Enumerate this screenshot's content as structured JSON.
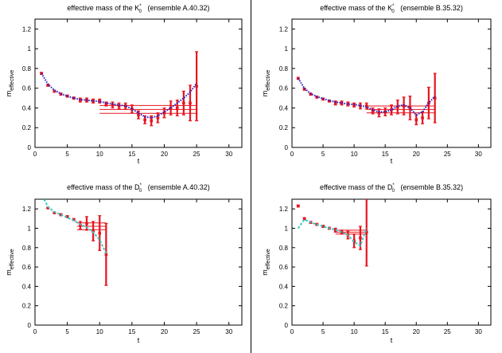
{
  "chart_data": [
    {
      "type": "scatter",
      "title_main": "effective mass of the K",
      "title_sup": "*",
      "title_sub": "0",
      "title_tail": "   (ensemble A.40.32)",
      "xlabel": "t",
      "ylabel_main": "m",
      "ylabel_sub": "effective",
      "xlim": [
        0,
        32
      ],
      "ylim": [
        0,
        1.3
      ],
      "xticks": [
        "0",
        "5",
        "10",
        "15",
        "20",
        "25",
        "30"
      ],
      "yticks": [
        "0",
        "0.2",
        "0.4",
        "0.6",
        "0.8",
        "1",
        "1.2"
      ],
      "colors": {
        "data": "#e8141e",
        "fit": "#2020c8"
      },
      "fit_style": "dotted",
      "points": [
        {
          "x": 1,
          "y": 0.75,
          "err": 0.01
        },
        {
          "x": 2,
          "y": 0.63,
          "err": 0.01
        },
        {
          "x": 3,
          "y": 0.57,
          "err": 0.01
        },
        {
          "x": 4,
          "y": 0.54,
          "err": 0.01
        },
        {
          "x": 5,
          "y": 0.52,
          "err": 0.01
        },
        {
          "x": 6,
          "y": 0.5,
          "err": 0.01
        },
        {
          "x": 7,
          "y": 0.48,
          "err": 0.02
        },
        {
          "x": 8,
          "y": 0.48,
          "err": 0.02
        },
        {
          "x": 9,
          "y": 0.47,
          "err": 0.02
        },
        {
          "x": 10,
          "y": 0.47,
          "err": 0.02
        },
        {
          "x": 11,
          "y": 0.44,
          "err": 0.02
        },
        {
          "x": 12,
          "y": 0.43,
          "err": 0.03
        },
        {
          "x": 13,
          "y": 0.42,
          "err": 0.03
        },
        {
          "x": 14,
          "y": 0.42,
          "err": 0.03
        },
        {
          "x": 15,
          "y": 0.39,
          "err": 0.04
        },
        {
          "x": 16,
          "y": 0.33,
          "err": 0.04
        },
        {
          "x": 17,
          "y": 0.28,
          "err": 0.04
        },
        {
          "x": 18,
          "y": 0.27,
          "err": 0.05
        },
        {
          "x": 19,
          "y": 0.3,
          "err": 0.05
        },
        {
          "x": 20,
          "y": 0.35,
          "err": 0.05
        },
        {
          "x": 21,
          "y": 0.4,
          "err": 0.07
        },
        {
          "x": 22,
          "y": 0.4,
          "err": 0.08
        },
        {
          "x": 23,
          "y": 0.45,
          "err": 0.12
        },
        {
          "x": 24,
          "y": 0.45,
          "err": 0.18
        },
        {
          "x": 25,
          "y": 0.62,
          "err": 0.35
        }
      ],
      "fit_curve": [
        [
          1,
          0.75
        ],
        [
          2,
          0.64
        ],
        [
          3,
          0.58
        ],
        [
          4,
          0.545
        ],
        [
          5,
          0.52
        ],
        [
          6,
          0.5
        ],
        [
          7,
          0.485
        ],
        [
          8,
          0.478
        ],
        [
          9,
          0.472
        ],
        [
          10,
          0.465
        ],
        [
          11,
          0.45
        ],
        [
          12,
          0.44
        ],
        [
          13,
          0.43
        ],
        [
          14,
          0.42
        ],
        [
          15,
          0.39
        ],
        [
          16,
          0.35
        ],
        [
          17,
          0.31
        ],
        [
          18,
          0.3
        ],
        [
          19,
          0.32
        ],
        [
          20,
          0.36
        ],
        [
          21,
          0.4
        ],
        [
          22,
          0.45
        ],
        [
          23,
          0.5
        ],
        [
          24,
          0.56
        ],
        [
          25,
          0.65
        ]
      ],
      "plateau": {
        "x_start": 10,
        "x_end": 25,
        "value": 0.385,
        "err": 0.04
      }
    },
    {
      "type": "scatter",
      "title_main": "effective mass of the K",
      "title_sup": "*",
      "title_sub": "0",
      "title_tail": "   (ensemble B.35.32)",
      "xlabel": "t",
      "ylabel_main": "m",
      "ylabel_sub": "effective",
      "xlim": [
        0,
        32
      ],
      "ylim": [
        0,
        1.3
      ],
      "xticks": [
        "0",
        "5",
        "10",
        "15",
        "20",
        "25",
        "30"
      ],
      "yticks": [
        "0",
        "0.2",
        "0.4",
        "0.6",
        "0.8",
        "1",
        "1.2"
      ],
      "colors": {
        "data": "#e8141e",
        "fit": "#2020c8"
      },
      "fit_style": "dotted",
      "points": [
        {
          "x": 1,
          "y": 0.7,
          "err": 0.01
        },
        {
          "x": 2,
          "y": 0.59,
          "err": 0.01
        },
        {
          "x": 3,
          "y": 0.54,
          "err": 0.01
        },
        {
          "x": 4,
          "y": 0.51,
          "err": 0.01
        },
        {
          "x": 5,
          "y": 0.49,
          "err": 0.01
        },
        {
          "x": 6,
          "y": 0.47,
          "err": 0.01
        },
        {
          "x": 7,
          "y": 0.45,
          "err": 0.02
        },
        {
          "x": 8,
          "y": 0.45,
          "err": 0.02
        },
        {
          "x": 9,
          "y": 0.44,
          "err": 0.02
        },
        {
          "x": 10,
          "y": 0.43,
          "err": 0.02
        },
        {
          "x": 11,
          "y": 0.42,
          "err": 0.03
        },
        {
          "x": 12,
          "y": 0.42,
          "err": 0.03
        },
        {
          "x": 13,
          "y": 0.37,
          "err": 0.03
        },
        {
          "x": 14,
          "y": 0.35,
          "err": 0.04
        },
        {
          "x": 15,
          "y": 0.36,
          "err": 0.04
        },
        {
          "x": 16,
          "y": 0.38,
          "err": 0.05
        },
        {
          "x": 17,
          "y": 0.41,
          "err": 0.07
        },
        {
          "x": 18,
          "y": 0.42,
          "err": 0.09
        },
        {
          "x": 19,
          "y": 0.4,
          "err": 0.12
        },
        {
          "x": 20,
          "y": 0.28,
          "err": 0.05
        },
        {
          "x": 21,
          "y": 0.3,
          "err": 0.06
        },
        {
          "x": 22,
          "y": 0.45,
          "err": 0.16
        },
        {
          "x": 23,
          "y": 0.5,
          "err": 0.25
        }
      ],
      "fit_curve": [
        [
          1,
          0.7
        ],
        [
          2,
          0.6
        ],
        [
          3,
          0.545
        ],
        [
          4,
          0.515
        ],
        [
          5,
          0.495
        ],
        [
          6,
          0.475
        ],
        [
          7,
          0.46
        ],
        [
          8,
          0.45
        ],
        [
          9,
          0.44
        ],
        [
          10,
          0.435
        ],
        [
          11,
          0.425
        ],
        [
          12,
          0.41
        ],
        [
          13,
          0.38
        ],
        [
          14,
          0.36
        ],
        [
          15,
          0.36
        ],
        [
          16,
          0.38
        ],
        [
          17,
          0.42
        ],
        [
          18,
          0.43
        ],
        [
          19,
          0.4
        ],
        [
          20,
          0.33
        ],
        [
          21,
          0.36
        ],
        [
          22,
          0.45
        ],
        [
          23,
          0.52
        ]
      ],
      "plateau": {
        "x_start": 12,
        "x_end": 23,
        "value": 0.385,
        "err": 0.035
      }
    },
    {
      "type": "scatter",
      "title_main": "effective mass of the D",
      "title_sup": "*",
      "title_sub": "0",
      "title_tail": "   (ensemble A.40.32)",
      "xlabel": "t",
      "ylabel_main": "m",
      "ylabel_sub": "effective",
      "xlim": [
        0,
        32
      ],
      "ylim": [
        0,
        1.3
      ],
      "xticks": [
        "0",
        "5",
        "10",
        "15",
        "20",
        "25",
        "30"
      ],
      "yticks": [
        "0",
        "0.2",
        "0.4",
        "0.6",
        "0.8",
        "1",
        "1.2"
      ],
      "colors": {
        "data": "#e8141e",
        "fit": "#33cccc"
      },
      "fit_style": "dashed",
      "points": [
        {
          "x": 2,
          "y": 1.21,
          "err": 0.005
        },
        {
          "x": 3,
          "y": 1.16,
          "err": 0.005
        },
        {
          "x": 4,
          "y": 1.14,
          "err": 0.01
        },
        {
          "x": 5,
          "y": 1.12,
          "err": 0.01
        },
        {
          "x": 6,
          "y": 1.09,
          "err": 0.01
        },
        {
          "x": 7,
          "y": 1.03,
          "err": 0.04
        },
        {
          "x": 8,
          "y": 1.05,
          "err": 0.07
        },
        {
          "x": 9,
          "y": 0.97,
          "err": 0.1
        },
        {
          "x": 10,
          "y": 0.95,
          "err": 0.18
        },
        {
          "x": 11,
          "y": 0.73,
          "err": 0.32
        }
      ],
      "fit_curve": [
        [
          1.4,
          1.3
        ],
        [
          2,
          1.22
        ],
        [
          3,
          1.17
        ],
        [
          4,
          1.14
        ],
        [
          5,
          1.11
        ],
        [
          6,
          1.08
        ],
        [
          7,
          1.04
        ],
        [
          8,
          1.01
        ],
        [
          9,
          0.96
        ],
        [
          10,
          0.88
        ],
        [
          11,
          0.74
        ]
      ],
      "plateau": {
        "x_start": 6.5,
        "x_end": 11,
        "value": 1.02,
        "err": 0.035
      }
    },
    {
      "type": "scatter",
      "title_main": "effective mass of the D",
      "title_sup": "*",
      "title_sub": "0",
      "title_tail": "   (ensemble B.35.32)",
      "xlabel": "t",
      "ylabel_main": "m",
      "ylabel_sub": "effective",
      "xlim": [
        0,
        32
      ],
      "ylim": [
        0,
        1.3
      ],
      "xticks": [
        "0",
        "5",
        "10",
        "15",
        "20",
        "25",
        "30"
      ],
      "yticks": [
        "0",
        "0.2",
        "0.4",
        "0.6",
        "0.8",
        "1",
        "1.2"
      ],
      "colors": {
        "data": "#e8141e",
        "fit": "#33cccc"
      },
      "fit_style": "dashed",
      "points": [
        {
          "x": 1,
          "y": 1.23,
          "err": 0.01
        },
        {
          "x": 2,
          "y": 1.1,
          "err": 0.01
        },
        {
          "x": 3,
          "y": 1.06,
          "err": 0.01
        },
        {
          "x": 4,
          "y": 1.04,
          "err": 0.01
        },
        {
          "x": 5,
          "y": 1.02,
          "err": 0.01
        },
        {
          "x": 6,
          "y": 1.0,
          "err": 0.01
        },
        {
          "x": 7,
          "y": 0.98,
          "err": 0.02
        },
        {
          "x": 8,
          "y": 0.96,
          "err": 0.02
        },
        {
          "x": 9,
          "y": 0.93,
          "err": 0.04
        },
        {
          "x": 10,
          "y": 0.87,
          "err": 0.07
        },
        {
          "x": 11,
          "y": 0.9,
          "err": 0.12
        },
        {
          "x": 12,
          "y": 0.96,
          "err": 0.35
        }
      ],
      "fit_curve": [
        [
          1,
          1.0
        ],
        [
          2,
          1.09
        ],
        [
          3,
          1.06
        ],
        [
          4,
          1.04
        ],
        [
          5,
          1.02
        ],
        [
          6,
          1.0
        ],
        [
          7,
          0.985
        ],
        [
          8,
          0.96
        ],
        [
          9,
          0.93
        ],
        [
          10,
          0.86
        ],
        [
          11,
          0.82
        ],
        [
          12,
          1.0
        ]
      ],
      "plateau": {
        "x_start": 7,
        "x_end": 12,
        "value": 0.96,
        "err": 0.02
      }
    }
  ]
}
